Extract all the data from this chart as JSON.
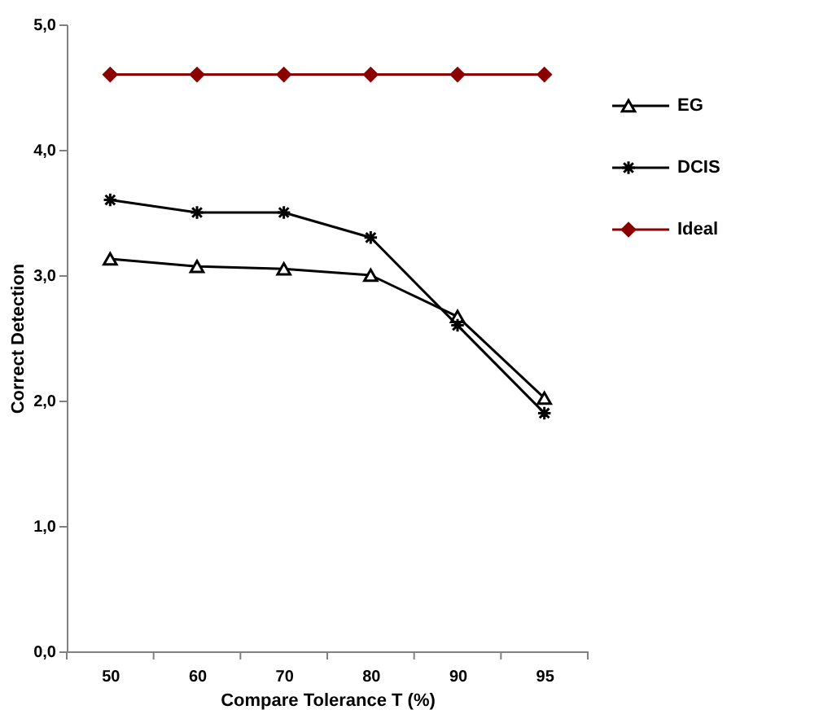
{
  "chart_data": {
    "type": "line",
    "xlabel": "Compare Tolerance T (%)",
    "ylabel": "Correct Detection",
    "categories": [
      "50",
      "60",
      "70",
      "80",
      "90",
      "95"
    ],
    "series": [
      {
        "name": "EG",
        "color": "#000000",
        "marker": "triangle",
        "values": [
          3.13,
          3.07,
          3.05,
          3.0,
          2.67,
          2.02
        ]
      },
      {
        "name": "DCIS",
        "color": "#000000",
        "marker": "cross",
        "values": [
          3.6,
          3.5,
          3.5,
          3.3,
          2.6,
          1.9
        ]
      },
      {
        "name": "Ideal",
        "color": "#8b0000",
        "marker": "diamond",
        "values": [
          4.6,
          4.6,
          4.6,
          4.6,
          4.6,
          4.6
        ]
      }
    ],
    "ylim": [
      0,
      5
    ],
    "yticks": [
      {
        "value": 0,
        "label": "0,0"
      },
      {
        "value": 1,
        "label": "1,0"
      },
      {
        "value": 2,
        "label": "2,0"
      },
      {
        "value": 3,
        "label": "3,0"
      },
      {
        "value": 4,
        "label": "4,0"
      },
      {
        "value": 5,
        "label": "5,0"
      }
    ],
    "grid": false,
    "legend": "right",
    "line_style": "solid"
  }
}
